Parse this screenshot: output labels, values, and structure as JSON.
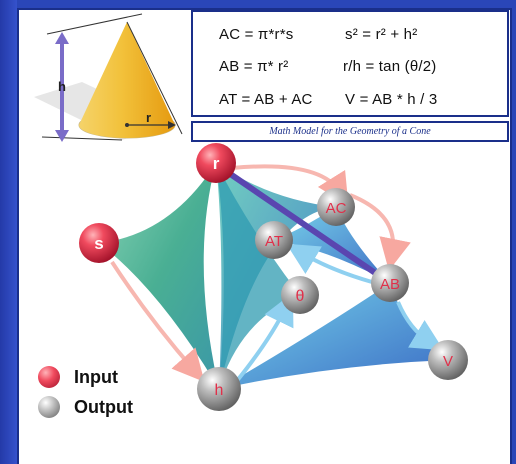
{
  "formulas": {
    "ac": "AC = π*r*s",
    "s2": "s² = r² + h²",
    "ab": "AB = π* r²",
    "rh": "r/h = tan (θ/2)",
    "at": "AT = AB + AC",
    "v": "V = AB * h / 3"
  },
  "caption": "Math Model for the Geometry of a Cone",
  "cone": {
    "h_label": "h",
    "r_label": "r"
  },
  "nodes": {
    "r": "r",
    "s": "s",
    "h": "h",
    "ac": "AC",
    "at": "AT",
    "ab": "AB",
    "theta": "θ",
    "v": "V"
  },
  "legend": {
    "input": {
      "label": "Input",
      "color": "#e0304a"
    },
    "output": {
      "label": "Output",
      "color": "#9a9a9a"
    }
  },
  "colors": {
    "frame": "#1a2f8a",
    "background": "#2a46b8",
    "input_node": "#e0304a",
    "output_node": "#9a9a9a",
    "arrow_pink": "#f7b7b0",
    "arrow_blue": "#8fd0f0",
    "link_purple": "#5a46b0",
    "sheet_green": "#3aa88a",
    "sheet_blue": "#2f7fd0"
  }
}
